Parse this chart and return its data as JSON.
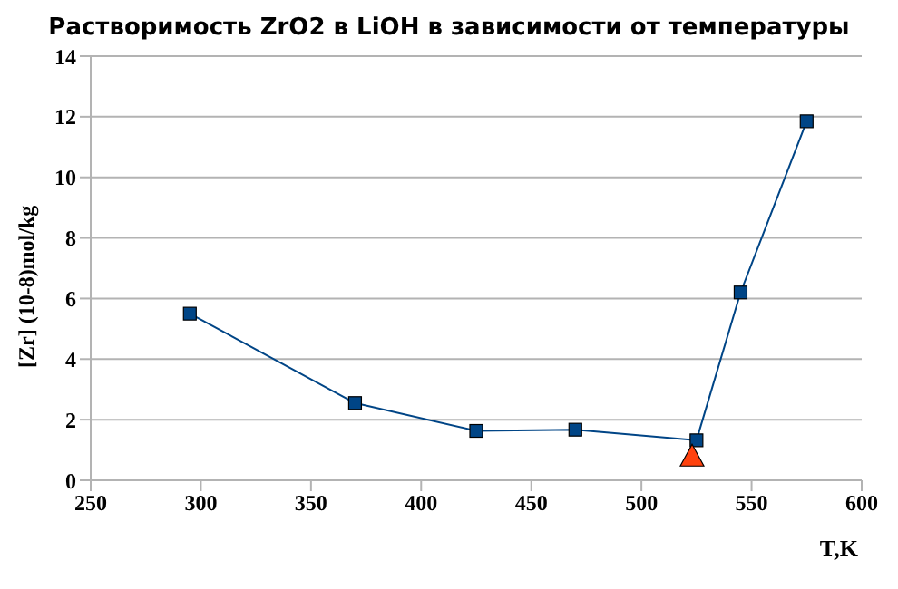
{
  "chart_data": {
    "type": "line",
    "title": "Растворимость ZrO2 в LiOH в зависимости от температуры",
    "xlabel": "T,K",
    "ylabel": "[Zr] (10-8)mol/kg",
    "xlim": [
      250,
      600
    ],
    "xticks": [
      250,
      300,
      350,
      400,
      450,
      500,
      550,
      600
    ],
    "ylim": [
      0,
      14
    ],
    "yticks": [
      0,
      2,
      4,
      6,
      8,
      10,
      12,
      14
    ],
    "grid": "y",
    "legend": false,
    "series": [
      {
        "color": "#004586",
        "marker": "square",
        "x": [
          295,
          370,
          425,
          470,
          525,
          545,
          575
        ],
        "values": [
          5.5,
          2.55,
          1.63,
          1.67,
          1.32,
          6.2,
          11.85
        ]
      },
      {
        "type": "scatter",
        "color": "#ff420e",
        "marker": "triangle",
        "x": [
          523
        ],
        "values": [
          0.77
        ]
      }
    ]
  }
}
